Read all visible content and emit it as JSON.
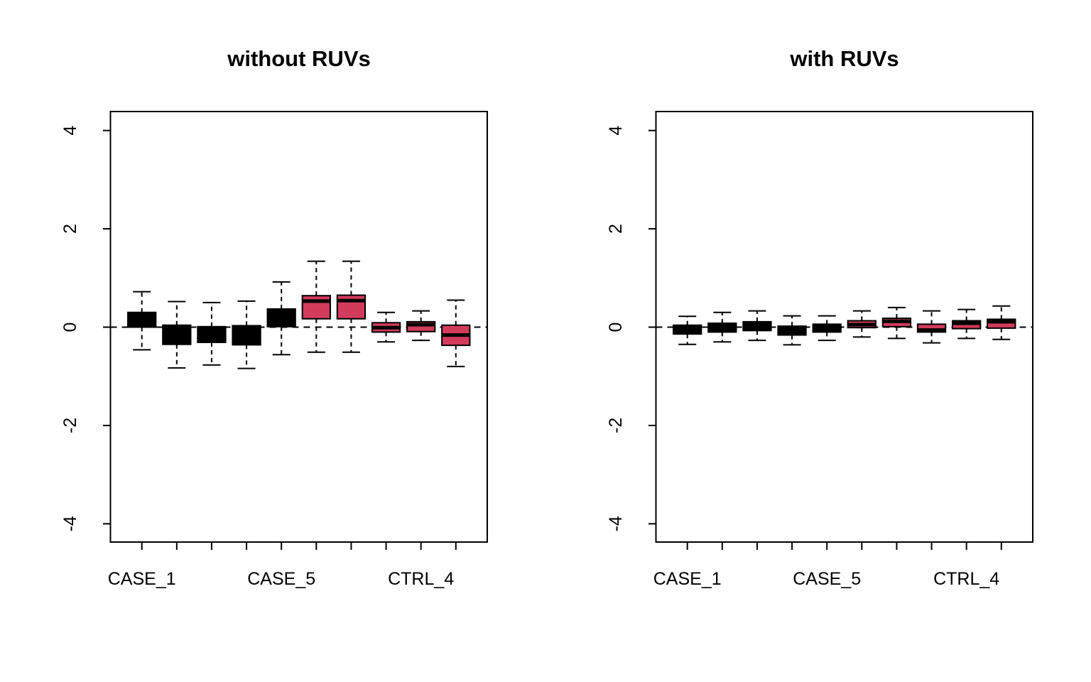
{
  "figure": {
    "background": "#ffffff",
    "palette": {
      "case_fill": "#000000",
      "ctrl_fill": "#d23b5c",
      "line": "#000000"
    }
  },
  "chart_data": [
    {
      "type": "boxplot",
      "title": "without RUVs",
      "n_positions": 10,
      "y_ticks": [
        -4,
        -2,
        0,
        2,
        4
      ],
      "ylim": [
        -4.38,
        4.38
      ],
      "grid": false,
      "zero_line": {
        "y": 0,
        "style": "dashed"
      },
      "x_tick_labels": [
        {
          "position": 1,
          "label": "CASE_1"
        },
        {
          "position": 5,
          "label": "CASE_5"
        },
        {
          "position": 9,
          "label": "CTRL_4"
        }
      ],
      "boxes": [
        {
          "group": "CASE",
          "color_key": "case_fill",
          "whisker_low": -0.46,
          "q1": 0.0,
          "median": 0.1,
          "q3": 0.3,
          "whisker_high": 0.72
        },
        {
          "group": "CASE",
          "color_key": "case_fill",
          "whisker_low": -0.83,
          "q1": -0.35,
          "median": -0.15,
          "q3": 0.04,
          "whisker_high": 0.52
        },
        {
          "group": "CASE",
          "color_key": "case_fill",
          "whisker_low": -0.77,
          "q1": -0.31,
          "median": -0.15,
          "q3": 0.01,
          "whisker_high": 0.5
        },
        {
          "group": "CASE",
          "color_key": "case_fill",
          "whisker_low": -0.84,
          "q1": -0.36,
          "median": -0.16,
          "q3": 0.03,
          "whisker_high": 0.53
        },
        {
          "group": "CASE",
          "color_key": "case_fill",
          "whisker_low": -0.56,
          "q1": 0.01,
          "median": 0.18,
          "q3": 0.37,
          "whisker_high": 0.92
        },
        {
          "group": "CTRL",
          "color_key": "ctrl_fill",
          "whisker_low": -0.51,
          "q1": 0.17,
          "median": 0.53,
          "q3": 0.64,
          "whisker_high": 1.34
        },
        {
          "group": "CTRL",
          "color_key": "ctrl_fill",
          "whisker_low": -0.51,
          "q1": 0.17,
          "median": 0.54,
          "q3": 0.65,
          "whisker_high": 1.34
        },
        {
          "group": "CTRL",
          "color_key": "ctrl_fill",
          "whisker_low": -0.3,
          "q1": -0.1,
          "median": -0.01,
          "q3": 0.09,
          "whisker_high": 0.3
        },
        {
          "group": "CTRL",
          "color_key": "ctrl_fill",
          "whisker_low": -0.27,
          "q1": -0.09,
          "median": 0.05,
          "q3": 0.11,
          "whisker_high": 0.33
        },
        {
          "group": "CTRL",
          "color_key": "ctrl_fill",
          "whisker_low": -0.8,
          "q1": -0.37,
          "median": -0.16,
          "q3": 0.04,
          "whisker_high": 0.55
        }
      ]
    },
    {
      "type": "boxplot",
      "title": "with RUVs",
      "n_positions": 10,
      "y_ticks": [
        -4,
        -2,
        0,
        2,
        4
      ],
      "ylim": [
        -4.38,
        4.38
      ],
      "grid": false,
      "zero_line": {
        "y": 0,
        "style": "dashed"
      },
      "x_tick_labels": [
        {
          "position": 1,
          "label": "CASE_1"
        },
        {
          "position": 5,
          "label": "CASE_5"
        },
        {
          "position": 9,
          "label": "CTRL_4"
        }
      ],
      "boxes": [
        {
          "group": "CASE",
          "color_key": "case_fill",
          "whisker_low": -0.35,
          "q1": -0.14,
          "median": -0.05,
          "q3": 0.04,
          "whisker_high": 0.22
        },
        {
          "group": "CASE",
          "color_key": "case_fill",
          "whisker_low": -0.3,
          "q1": -0.1,
          "median": -0.02,
          "q3": 0.08,
          "whisker_high": 0.3
        },
        {
          "group": "CASE",
          "color_key": "case_fill",
          "whisker_low": -0.27,
          "q1": -0.07,
          "median": 0.02,
          "q3": 0.11,
          "whisker_high": 0.33
        },
        {
          "group": "CASE",
          "color_key": "case_fill",
          "whisker_low": -0.36,
          "q1": -0.16,
          "median": -0.07,
          "q3": 0.02,
          "whisker_high": 0.23
        },
        {
          "group": "CASE",
          "color_key": "case_fill",
          "whisker_low": -0.27,
          "q1": -0.1,
          "median": -0.03,
          "q3": 0.06,
          "whisker_high": 0.23
        },
        {
          "group": "CTRL",
          "color_key": "ctrl_fill",
          "whisker_low": -0.2,
          "q1": -0.01,
          "median": 0.05,
          "q3": 0.13,
          "whisker_high": 0.33
        },
        {
          "group": "CTRL",
          "color_key": "ctrl_fill",
          "whisker_low": -0.23,
          "q1": 0.01,
          "median": 0.12,
          "q3": 0.18,
          "whisker_high": 0.4
        },
        {
          "group": "CTRL",
          "color_key": "ctrl_fill",
          "whisker_low": -0.32,
          "q1": -0.1,
          "median": -0.06,
          "q3": 0.06,
          "whisker_high": 0.33
        },
        {
          "group": "CTRL",
          "color_key": "ctrl_fill",
          "whisker_low": -0.23,
          "q1": -0.03,
          "median": 0.08,
          "q3": 0.13,
          "whisker_high": 0.36
        },
        {
          "group": "CTRL",
          "color_key": "ctrl_fill",
          "whisker_low": -0.25,
          "q1": -0.02,
          "median": 0.11,
          "q3": 0.16,
          "whisker_high": 0.43
        }
      ]
    }
  ]
}
